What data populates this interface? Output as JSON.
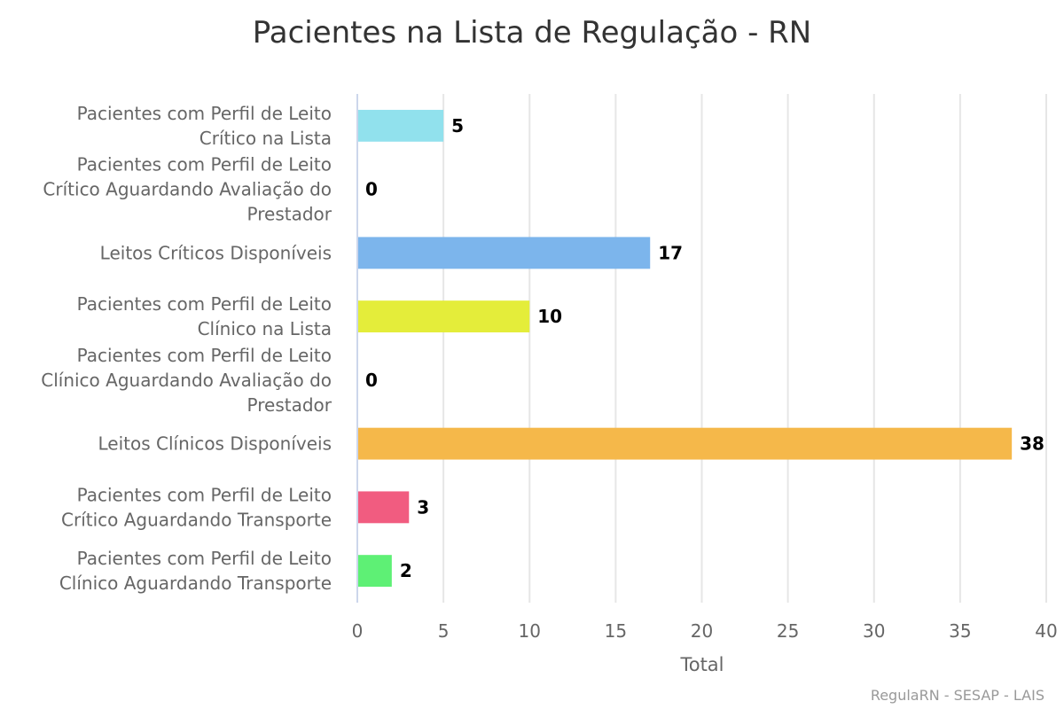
{
  "chart_data": {
    "type": "bar",
    "orientation": "horizontal",
    "title": "Pacientes na Lista de Regulação - RN",
    "xlabel": "Total",
    "ylabel": "",
    "xlim": [
      0,
      40
    ],
    "ticks": [
      0,
      5,
      10,
      15,
      20,
      25,
      30,
      35,
      40
    ],
    "grid": true,
    "legend": "none",
    "categories": [
      {
        "lines": [
          "Pacientes com Perfil de Leito",
          "Crítico na Lista"
        ],
        "value": 5,
        "color": "#91e1ed"
      },
      {
        "lines": [
          "Pacientes com Perfil de Leito",
          "Crítico Aguardando Avaliação do",
          "Prestador"
        ],
        "value": 0,
        "color": "#7cb5ec"
      },
      {
        "lines": [
          "Leitos Críticos Disponíveis"
        ],
        "value": 17,
        "color": "#7cb5ec"
      },
      {
        "lines": [
          "Pacientes com Perfil de Leito",
          "Clínico na Lista"
        ],
        "value": 10,
        "color": "#e4ed3a"
      },
      {
        "lines": [
          "Pacientes com Perfil de Leito",
          "Clínico Aguardando Avaliação do",
          "Prestador"
        ],
        "value": 0,
        "color": "#e4ed3a"
      },
      {
        "lines": [
          "Leitos Clínicos Disponíveis"
        ],
        "value": 38,
        "color": "#f5b84a"
      },
      {
        "lines": [
          "Pacientes com Perfil de Leito",
          "Crítico Aguardando Transporte"
        ],
        "value": 3,
        "color": "#f15c80"
      },
      {
        "lines": [
          "Pacientes com Perfil de Leito",
          "Clínico Aguardando Transporte"
        ],
        "value": 2,
        "color": "#5ef075"
      }
    ]
  },
  "credits": "RegulaRN - SESAP - LAIS"
}
